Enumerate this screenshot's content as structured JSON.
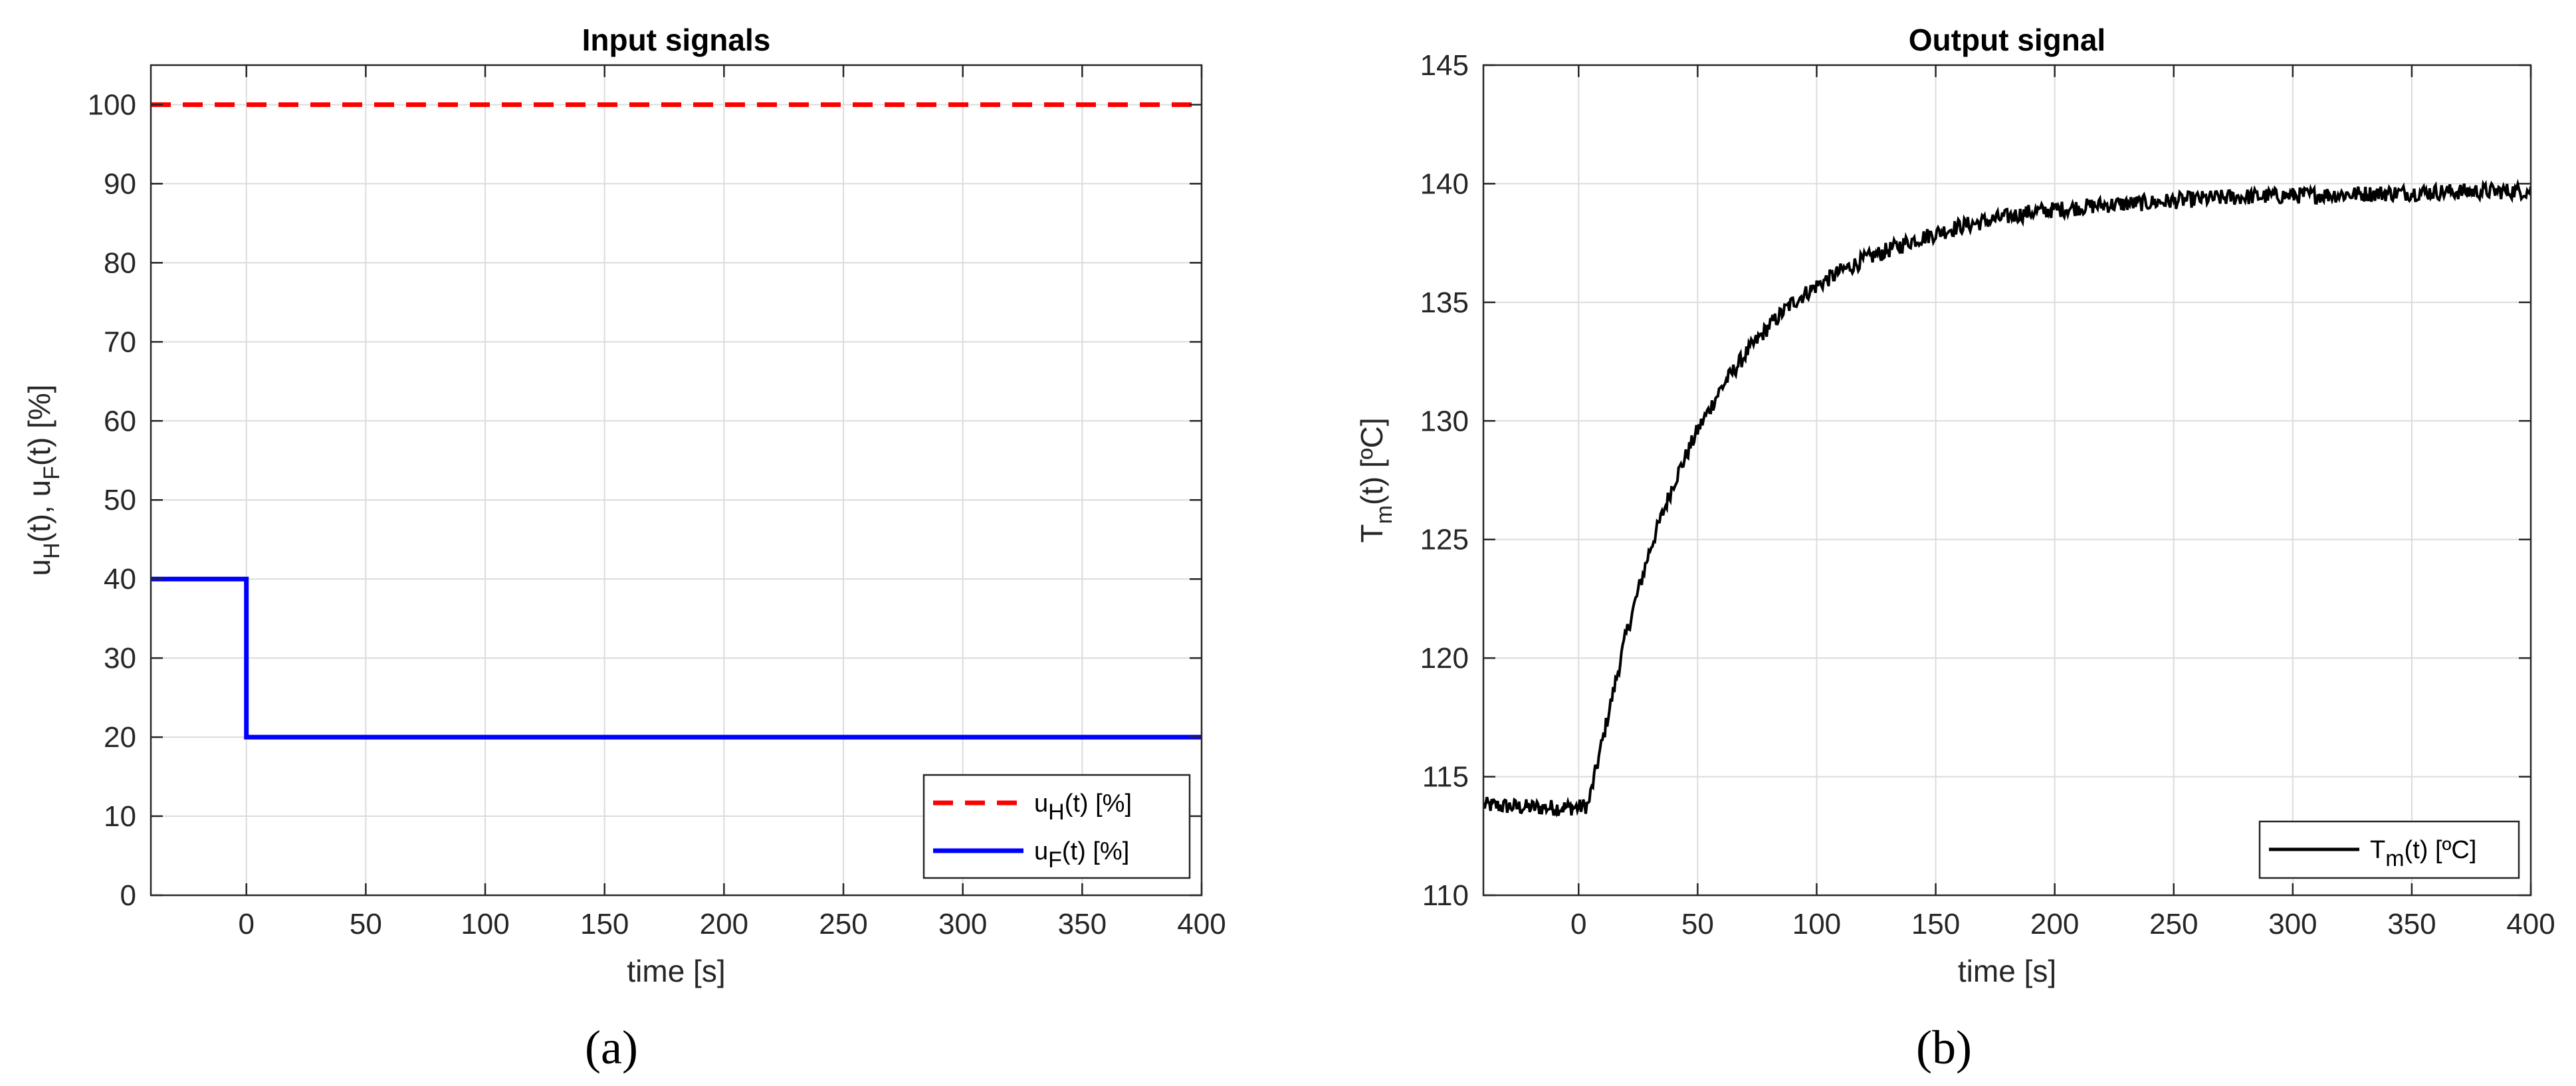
{
  "chart_data": [
    {
      "panel": "(a)",
      "type": "line",
      "title": "Input signals",
      "xlabel": "time [s]",
      "ylabel": {
        "parts": [
          "u",
          "H",
          "(t), u",
          "F",
          "(t) [%]"
        ]
      },
      "xlim": [
        -40,
        400
      ],
      "ylim": [
        0,
        105
      ],
      "xticks": [
        0,
        50,
        100,
        150,
        200,
        250,
        300,
        350,
        400
      ],
      "yticks": [
        0,
        10,
        20,
        30,
        40,
        50,
        60,
        70,
        80,
        90,
        100
      ],
      "grid": true,
      "legend_position": "bottom-right",
      "series": [
        {
          "name": "u_H(t) [%]",
          "label": {
            "base": "u",
            "sub": "H",
            "rest": "(t) [%]"
          },
          "color": "#ff0000",
          "style": "dashed",
          "x": [
            -40,
            400
          ],
          "y": [
            100,
            100
          ]
        },
        {
          "name": "u_F(t) [%]",
          "label": {
            "base": "u",
            "sub": "F",
            "rest": "(t) [%]"
          },
          "color": "#0000ff",
          "style": "solid",
          "x": [
            -40,
            0,
            0,
            400
          ],
          "y": [
            40,
            40,
            20,
            20
          ]
        }
      ]
    },
    {
      "panel": "(b)",
      "type": "line",
      "title": "Output signal",
      "xlabel": "time [s]",
      "ylabel": {
        "parts": [
          "T",
          "m",
          "(t) [ºC]"
        ]
      },
      "xlim": [
        -40,
        400
      ],
      "ylim": [
        110,
        145
      ],
      "xticks": [
        0,
        50,
        100,
        150,
        200,
        250,
        300,
        350,
        400
      ],
      "yticks": [
        110,
        115,
        120,
        125,
        130,
        135,
        140,
        145
      ],
      "grid": true,
      "legend_position": "bottom-right",
      "series": [
        {
          "name": "T_m(t) [ºC]",
          "label": {
            "base": "T",
            "sub": "m",
            "rest": "(t) [ºC]"
          },
          "color": "#000000",
          "style": "solid-noisy",
          "x": [
            -40,
            -20,
            0,
            4,
            10,
            20,
            30,
            40,
            50,
            60,
            70,
            80,
            90,
            100,
            110,
            120,
            130,
            140,
            150,
            160,
            170,
            180,
            190,
            200,
            220,
            240,
            260,
            280,
            300,
            320,
            340,
            360,
            380,
            400
          ],
          "y": [
            113.8,
            113.7,
            113.7,
            113.8,
            116.5,
            121.0,
            124.6,
            127.4,
            129.6,
            131.4,
            132.8,
            134.0,
            135.0,
            135.7,
            136.3,
            136.8,
            137.2,
            137.6,
            137.9,
            138.2,
            138.4,
            138.6,
            138.8,
            138.9,
            139.1,
            139.2,
            139.35,
            139.45,
            139.5,
            139.55,
            139.6,
            139.65,
            139.68,
            139.7
          ]
        }
      ]
    }
  ]
}
